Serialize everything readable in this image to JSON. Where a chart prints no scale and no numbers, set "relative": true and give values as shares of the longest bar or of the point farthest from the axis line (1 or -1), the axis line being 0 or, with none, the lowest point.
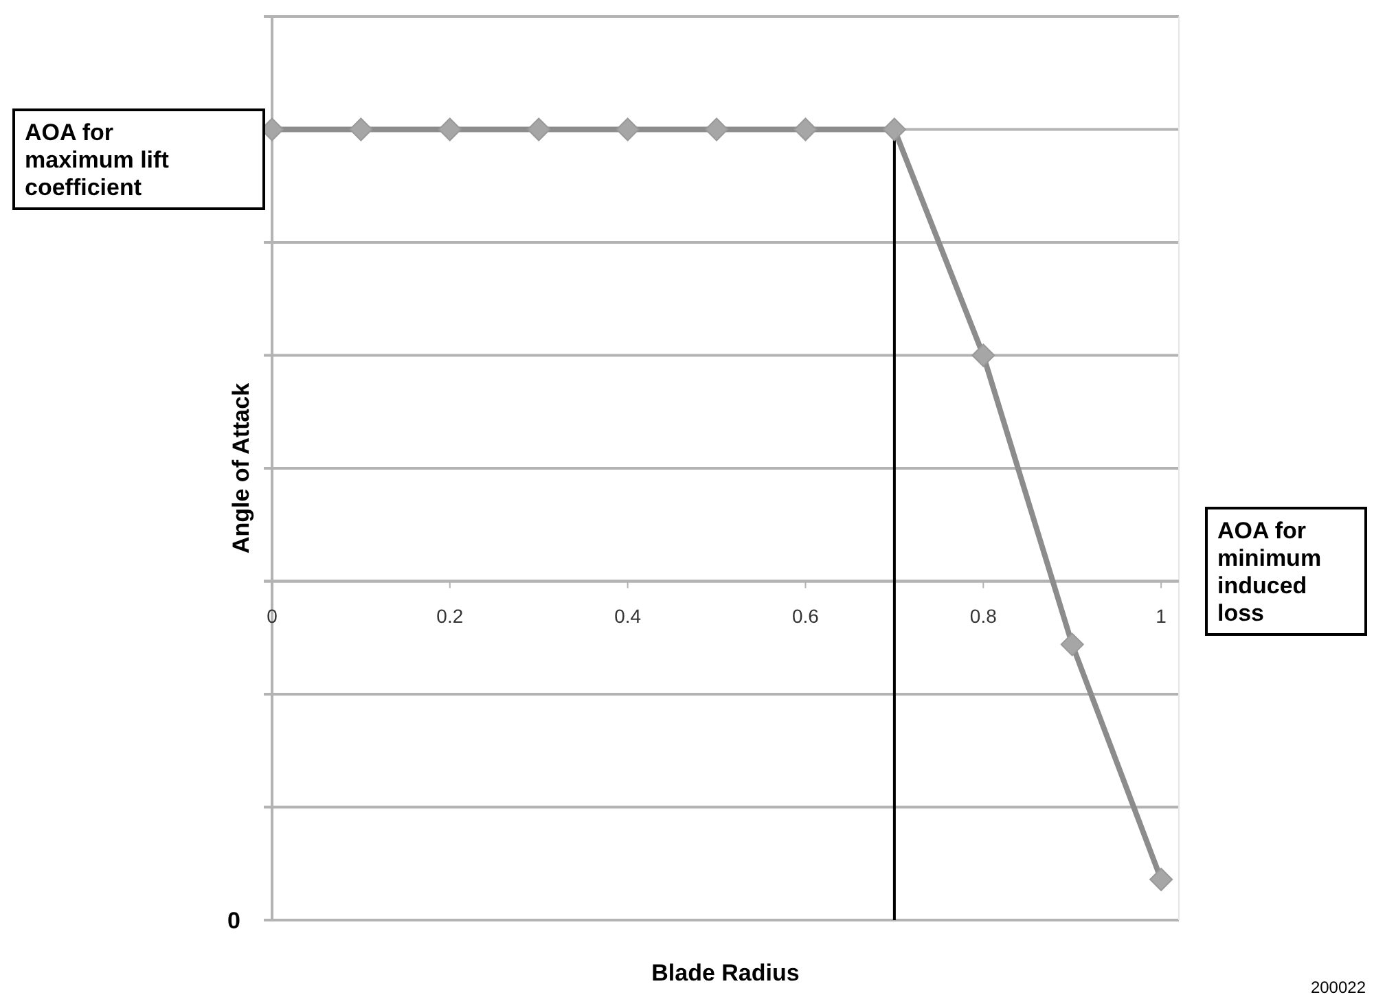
{
  "chart_data": {
    "type": "line",
    "xlabel": "Blade Radius",
    "ylabel": "Angle of Attack",
    "relative": true,
    "x": [
      0,
      0.1,
      0.2,
      0.3,
      0.4,
      0.5,
      0.6,
      0.7,
      0.8,
      0.9,
      1
    ],
    "series": [
      {
        "color": "#8c8c8c",
        "values": [
          1,
          1,
          1,
          1,
          1,
          1,
          1,
          1,
          0.5,
          -0.14,
          -0.66
        ]
      }
    ],
    "xlim": [
      0,
      1.02
    ],
    "xticks": [
      0,
      0.2,
      0.4,
      0.6,
      0.8,
      1
    ],
    "grid": "y",
    "marker": "diamond",
    "line_style": "solid",
    "ref_lines": [
      {
        "axis": "x",
        "value": 0.7,
        "color": "#000000"
      }
    ],
    "annotations": [
      "AOA for maximum lift coefficient",
      "AOA for minimum induced loss",
      "0",
      "200022"
    ]
  }
}
